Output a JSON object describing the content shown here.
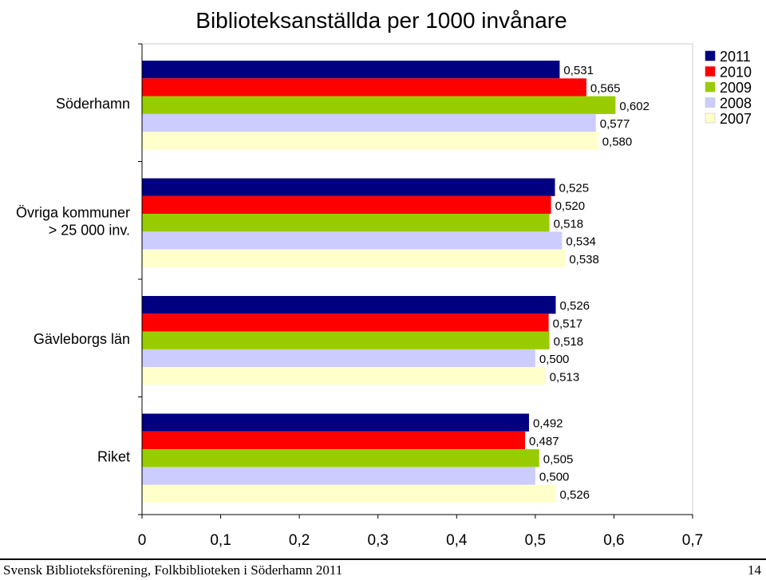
{
  "chart_data": {
    "type": "bar",
    "orientation": "horizontal",
    "title": "Biblioteksanställda per 1000 invånare",
    "categories": [
      "Söderhamn",
      "Övriga kommuner\n> 25 000 inv.",
      "Gävleborgs län",
      "Riket"
    ],
    "series": [
      {
        "name": "2011",
        "color": "#000080",
        "values": [
          0.531,
          0.525,
          0.526,
          0.492
        ],
        "labels": [
          "0,531",
          "0,525",
          "0,526",
          "0,492"
        ]
      },
      {
        "name": "2010",
        "color": "#ff0000",
        "values": [
          0.565,
          0.52,
          0.517,
          0.487
        ],
        "labels": [
          "0,565",
          "0,520",
          "0,517",
          "0,487"
        ]
      },
      {
        "name": "2009",
        "color": "#99cc00",
        "values": [
          0.602,
          0.518,
          0.518,
          0.505
        ],
        "labels": [
          "0,602",
          "0,518",
          "0,518",
          "0,505"
        ]
      },
      {
        "name": "2008",
        "color": "#ccccff",
        "values": [
          0.577,
          0.534,
          0.5,
          0.5
        ],
        "labels": [
          "0,577",
          "0,534",
          "0,500",
          "0,500"
        ]
      },
      {
        "name": "2007",
        "color": "#ffffcc",
        "values": [
          0.58,
          0.538,
          0.513,
          0.526
        ],
        "labels": [
          "0,580",
          "0,538",
          "0,513",
          "0,526"
        ]
      }
    ],
    "xlim": [
      0,
      0.7
    ],
    "xticks": [
      0,
      0.1,
      0.2,
      0.3,
      0.4,
      0.5,
      0.6,
      0.7
    ],
    "xtick_labels": [
      "0",
      "0,1",
      "0,2",
      "0,3",
      "0,4",
      "0,5",
      "0,6",
      "0,7"
    ],
    "xlabel": "",
    "ylabel": "",
    "grid": false,
    "legend": "top-right"
  },
  "footer": {
    "left": "Svensk Biblioteksförening, Folkbiblioteken i Söderhamn 2011",
    "page": "14"
  }
}
